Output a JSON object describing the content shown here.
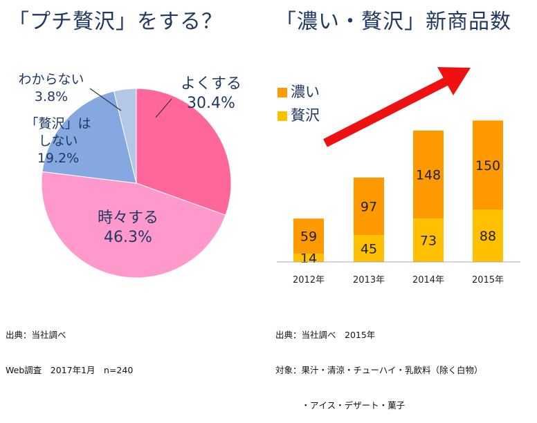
{
  "titles": {
    "left": "「プチ贅沢」をする？",
    "right": "「濃い・贅沢」新商品数"
  },
  "chart_data": [
    {
      "type": "pie",
      "title": "「プチ贅沢」をする？",
      "slices": [
        {
          "label": "よくする",
          "value": 30.4,
          "value_label": "30.4%",
          "color": "#ff6699"
        },
        {
          "label": "時々する",
          "value": 46.3,
          "value_label": "46.3%",
          "color": "#ff99cc"
        },
        {
          "label": "「贅沢」は しない",
          "value": 19.2,
          "value_label": "19.2%",
          "color": "#86a8e0"
        },
        {
          "label": "わからない",
          "value": 3.8,
          "value_label": "3.8%",
          "color": "#b4c7e7"
        }
      ]
    },
    {
      "type": "bar",
      "stacked": true,
      "title": "「濃い・贅沢」新商品数",
      "categories": [
        "2012年",
        "2013年",
        "2014年",
        "2015年"
      ],
      "series": [
        {
          "name": "贅沢",
          "values": [
            14,
            45,
            73,
            88
          ],
          "color": "#ffc000"
        },
        {
          "name": "濃い",
          "values": [
            59,
            97,
            148,
            150
          ],
          "color": "#ff9900"
        }
      ],
      "legend_position": "top-left",
      "trend_arrow_color": "#ee1111"
    }
  ],
  "notes": {
    "left": [
      "出典：当社調べ",
      "Web調査　2017年1月　n=240"
    ],
    "right": [
      "出典：当社調べ　2015年",
      "対象：果汁・清涼・チューハイ・乳飲料（除く白物）",
      "　　　・アイス・デザート・菓子"
    ]
  }
}
